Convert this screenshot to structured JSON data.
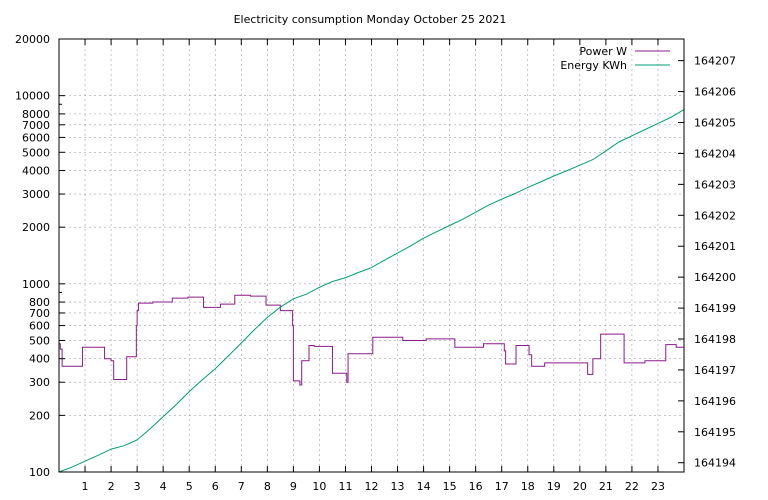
{
  "chart_data": {
    "type": "line",
    "title": "Electricity consumption Monday October 25 2021",
    "xlabel": "",
    "ylabel": "",
    "y2label": "",
    "grid": true,
    "legend_position": "top-right",
    "xlim": [
      0,
      24
    ],
    "x_ticks": [
      1,
      2,
      3,
      4,
      5,
      6,
      7,
      8,
      9,
      10,
      11,
      12,
      13,
      14,
      15,
      16,
      17,
      18,
      19,
      20,
      21,
      22,
      23
    ],
    "y_scale": "log",
    "ylim": [
      100,
      20000
    ],
    "y_ticks": [
      100,
      200,
      300,
      400,
      500,
      600,
      700,
      800,
      1000,
      2000,
      3000,
      4000,
      5000,
      6000,
      7000,
      8000,
      10000,
      20000
    ],
    "y_tick_labels": [
      "100",
      "200",
      "300",
      "400",
      "500",
      "600",
      "700",
      "800",
      "1000",
      "2000",
      "3000",
      "4000",
      "5000",
      "6000",
      "7000",
      "8000",
      "10000",
      "20000"
    ],
    "y_minor_ticks": [
      900,
      9000
    ],
    "y2_scale": "linear",
    "y2lim": [
      164193.7,
      164207.7
    ],
    "y2_ticks": [
      164194,
      164195,
      164196,
      164197,
      164198,
      164199,
      164200,
      164201,
      164202,
      164203,
      164204,
      164205,
      164206,
      164207
    ],
    "y2_tick_labels": [
      "164194",
      "164195",
      "164196",
      "164197",
      "164198",
      "164199",
      "164200",
      "164201",
      "164202",
      "164203",
      "164204",
      "164205",
      "164206",
      "164207"
    ],
    "series": [
      {
        "name": "Power W",
        "axis": "y",
        "color": "#8b1a8b",
        "points": [
          [
            0.0,
            480
          ],
          [
            0.05,
            480
          ],
          [
            0.05,
            450
          ],
          [
            0.12,
            450
          ],
          [
            0.12,
            365
          ],
          [
            0.9,
            365
          ],
          [
            0.9,
            460
          ],
          [
            1.75,
            460
          ],
          [
            1.75,
            400
          ],
          [
            2.0,
            400
          ],
          [
            2.0,
            390
          ],
          [
            2.1,
            390
          ],
          [
            2.1,
            310
          ],
          [
            2.6,
            310
          ],
          [
            2.6,
            410
          ],
          [
            2.97,
            410
          ],
          [
            2.97,
            600
          ],
          [
            3.0,
            600
          ],
          [
            3.0,
            720
          ],
          [
            3.05,
            720
          ],
          [
            3.05,
            790
          ],
          [
            3.6,
            790
          ],
          [
            3.6,
            800
          ],
          [
            4.35,
            800
          ],
          [
            4.35,
            840
          ],
          [
            4.95,
            840
          ],
          [
            4.95,
            850
          ],
          [
            5.55,
            850
          ],
          [
            5.55,
            750
          ],
          [
            6.2,
            750
          ],
          [
            6.2,
            780
          ],
          [
            6.75,
            780
          ],
          [
            6.75,
            870
          ],
          [
            7.35,
            870
          ],
          [
            7.35,
            860
          ],
          [
            7.95,
            860
          ],
          [
            7.95,
            770
          ],
          [
            8.5,
            770
          ],
          [
            8.5,
            720
          ],
          [
            8.97,
            720
          ],
          [
            8.97,
            600
          ],
          [
            9.0,
            600
          ],
          [
            9.0,
            305
          ],
          [
            9.25,
            305
          ],
          [
            9.25,
            290
          ],
          [
            9.32,
            290
          ],
          [
            9.32,
            390
          ],
          [
            9.6,
            390
          ],
          [
            9.6,
            470
          ],
          [
            9.8,
            470
          ],
          [
            9.8,
            465
          ],
          [
            10.5,
            465
          ],
          [
            10.5,
            335
          ],
          [
            11.05,
            335
          ],
          [
            11.05,
            300
          ],
          [
            11.1,
            300
          ],
          [
            11.1,
            425
          ],
          [
            12.05,
            425
          ],
          [
            12.05,
            520
          ],
          [
            13.2,
            520
          ],
          [
            13.2,
            500
          ],
          [
            14.1,
            500
          ],
          [
            14.1,
            510
          ],
          [
            15.2,
            510
          ],
          [
            15.2,
            460
          ],
          [
            16.3,
            460
          ],
          [
            16.3,
            480
          ],
          [
            17.1,
            480
          ],
          [
            17.1,
            440
          ],
          [
            17.15,
            440
          ],
          [
            17.15,
            375
          ],
          [
            17.55,
            375
          ],
          [
            17.55,
            470
          ],
          [
            18.05,
            470
          ],
          [
            18.05,
            420
          ],
          [
            18.15,
            420
          ],
          [
            18.15,
            365
          ],
          [
            18.65,
            365
          ],
          [
            18.65,
            380
          ],
          [
            20.3,
            380
          ],
          [
            20.3,
            330
          ],
          [
            20.5,
            330
          ],
          [
            20.5,
            400
          ],
          [
            20.8,
            400
          ],
          [
            20.8,
            540
          ],
          [
            21.7,
            540
          ],
          [
            21.7,
            380
          ],
          [
            22.5,
            380
          ],
          [
            22.5,
            390
          ],
          [
            23.3,
            390
          ],
          [
            23.3,
            475
          ],
          [
            23.7,
            475
          ],
          [
            23.7,
            460
          ],
          [
            24.0,
            460
          ]
        ]
      },
      {
        "name": "Energy KWh",
        "axis": "y2",
        "color": "#009e73",
        "points": [
          [
            0.0,
            164193.7
          ],
          [
            0.5,
            164193.86
          ],
          [
            1.0,
            164194.05
          ],
          [
            1.5,
            164194.24
          ],
          [
            2.0,
            164194.44
          ],
          [
            2.5,
            164194.55
          ],
          [
            3.0,
            164194.74
          ],
          [
            3.5,
            164195.1
          ],
          [
            4.0,
            164195.49
          ],
          [
            4.5,
            164195.88
          ],
          [
            5.0,
            164196.3
          ],
          [
            5.5,
            164196.68
          ],
          [
            6.0,
            164197.04
          ],
          [
            6.5,
            164197.45
          ],
          [
            7.0,
            164197.87
          ],
          [
            7.5,
            164198.3
          ],
          [
            8.0,
            164198.7
          ],
          [
            8.5,
            164199.03
          ],
          [
            9.0,
            164199.3
          ],
          [
            9.5,
            164199.45
          ],
          [
            10.0,
            164199.67
          ],
          [
            10.5,
            164199.86
          ],
          [
            11.0,
            164199.98
          ],
          [
            11.5,
            164200.15
          ],
          [
            12.0,
            164200.31
          ],
          [
            12.5,
            164200.55
          ],
          [
            13.0,
            164200.78
          ],
          [
            13.5,
            164201.01
          ],
          [
            14.0,
            164201.26
          ],
          [
            14.5,
            164201.47
          ],
          [
            15.0,
            164201.67
          ],
          [
            15.5,
            164201.87
          ],
          [
            16.0,
            164202.1
          ],
          [
            16.5,
            164202.33
          ],
          [
            17.0,
            164202.52
          ],
          [
            17.5,
            164202.7
          ],
          [
            18.0,
            164202.9
          ],
          [
            18.5,
            164203.08
          ],
          [
            19.0,
            164203.27
          ],
          [
            19.5,
            164203.44
          ],
          [
            20.0,
            164203.62
          ],
          [
            20.5,
            164203.8
          ],
          [
            21.0,
            164204.08
          ],
          [
            21.5,
            164204.37
          ],
          [
            22.0,
            164204.57
          ],
          [
            22.5,
            164204.77
          ],
          [
            23.0,
            164204.97
          ],
          [
            23.5,
            164205.17
          ],
          [
            24.0,
            164205.42
          ]
        ]
      }
    ]
  }
}
